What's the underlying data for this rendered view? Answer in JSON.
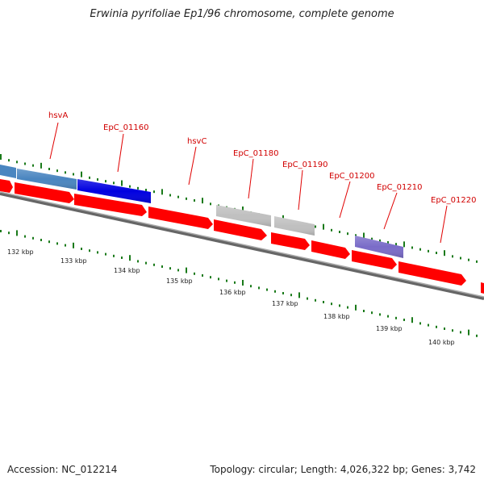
{
  "title": "Erwinia pyrifoliae Ep1/96 chromosome, complete genome",
  "footer": {
    "accession": "Accession: NC_012214",
    "summary": "Topology: circular; Length: 4,026,322 bp; Genes: 3,742"
  },
  "gene_labels": [
    "hsvA",
    "EpC_01160",
    "hsvC",
    "EpC_01180",
    "EpC_01190",
    "EpC_01200",
    "EpC_01210",
    "EpC_01220"
  ],
  "ruler_labels": [
    "132 kbp",
    "133 kbp",
    "134 kbp",
    "135 kbp",
    "136 kbp",
    "137 kbp",
    "138 kbp",
    "139 kbp",
    "140 kbp"
  ],
  "colors": {
    "forward_gene": "#ff0000",
    "hsv_gene_dark": "#0000e0",
    "hsv_gene_light": "#4a86c0",
    "grey_gene": "#bdbdbd",
    "purple_gene": "#7a6cc8",
    "backbone": "#888888",
    "tick": "#1a7a1a",
    "label": "#d10000"
  }
}
